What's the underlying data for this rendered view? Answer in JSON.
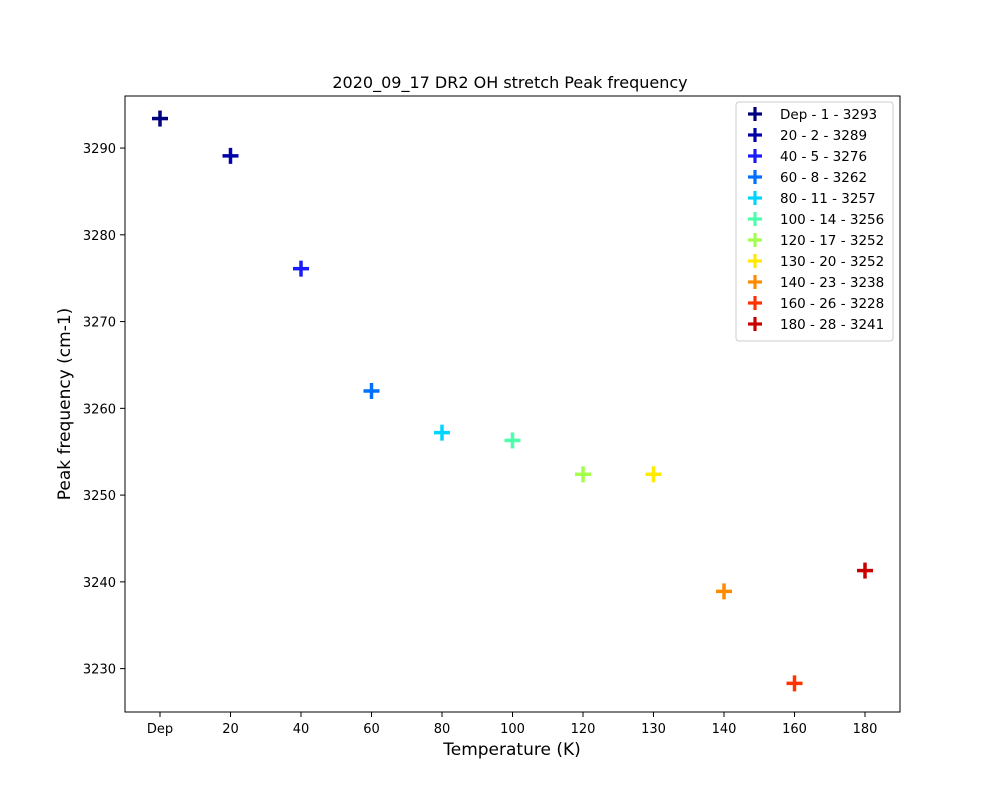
{
  "chart_data": {
    "type": "scatter",
    "title": "2020_09_17 DR2 OH stretch Peak frequency",
    "xlabel": "Temperature (K)",
    "ylabel": "Peak frequency (cm-1)",
    "categories": [
      "Dep",
      "20",
      "40",
      "60",
      "80",
      "100",
      "120",
      "130",
      "140",
      "160",
      "180"
    ],
    "ylim": [
      3225,
      3296
    ],
    "yticks": [
      3230,
      3240,
      3250,
      3260,
      3270,
      3280,
      3290
    ],
    "grid": false,
    "legend_position": "top-right",
    "marker": "plus",
    "series": [
      {
        "name": "Dep - 1 - 3293",
        "x": "Dep",
        "y": 3293.4,
        "color": "#00007f"
      },
      {
        "name": "20 - 2 - 3289",
        "x": "20",
        "y": 3289.1,
        "color": "#0000a8"
      },
      {
        "name": "40 - 5 - 3276",
        "x": "40",
        "y": 3276.1,
        "color": "#1a1aff"
      },
      {
        "name": "60 - 8 - 3262",
        "x": "60",
        "y": 3262.0,
        "color": "#0070ff"
      },
      {
        "name": "80 - 11 - 3257",
        "x": "80",
        "y": 3257.2,
        "color": "#00d5ff"
      },
      {
        "name": "100 - 14 - 3256",
        "x": "100",
        "y": 3256.3,
        "color": "#4cffaa"
      },
      {
        "name": "120 - 17 - 3252",
        "x": "120",
        "y": 3252.4,
        "color": "#a4ff4c"
      },
      {
        "name": "130 - 20 - 3252",
        "x": "130",
        "y": 3252.4,
        "color": "#ffea00"
      },
      {
        "name": "140 - 23 - 3238",
        "x": "140",
        "y": 3238.9,
        "color": "#ff8c00"
      },
      {
        "name": "160 - 26 - 3228",
        "x": "160",
        "y": 3228.3,
        "color": "#ff3300"
      },
      {
        "name": "180 - 28 - 3241",
        "x": "180",
        "y": 3241.3,
        "color": "#c80000"
      }
    ]
  }
}
